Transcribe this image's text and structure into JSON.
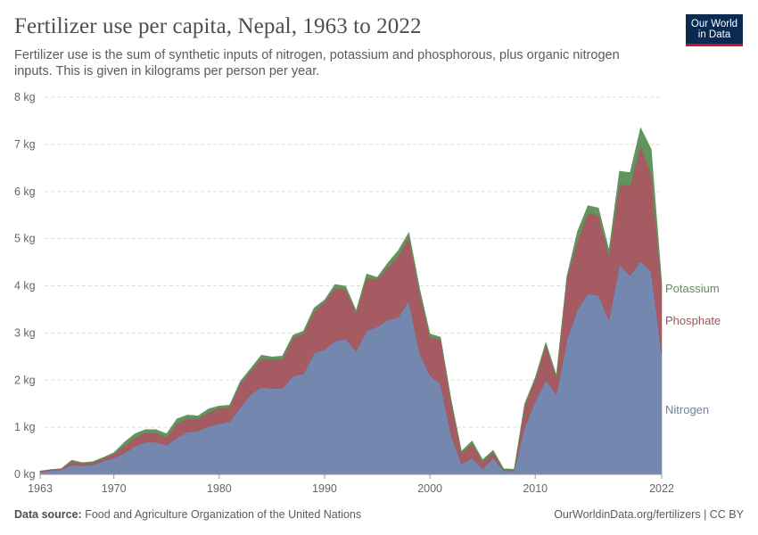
{
  "title": "Fertilizer use per capita, Nepal, 1963 to 2022",
  "subtitle": "Fertilizer use is the sum of synthetic inputs of nitrogen, potassium and phosphorous, plus organic nitrogen inputs. This is given in kilograms per person per year.",
  "logo": {
    "line1": "Our World",
    "line2": "in Data"
  },
  "footer": {
    "source_label": "Data source:",
    "source_text": "Food and Agriculture Organization of the United Nations",
    "right_text": "OurWorldinData.org/fertilizers | CC BY"
  },
  "chart_data": {
    "type": "area",
    "stacked": true,
    "x": [
      1963,
      1964,
      1965,
      1966,
      1967,
      1968,
      1969,
      1970,
      1971,
      1972,
      1973,
      1974,
      1975,
      1976,
      1977,
      1978,
      1979,
      1980,
      1981,
      1982,
      1983,
      1984,
      1985,
      1986,
      1987,
      1988,
      1989,
      1990,
      1991,
      1992,
      1993,
      1994,
      1995,
      1996,
      1997,
      1998,
      1999,
      2000,
      2001,
      2002,
      2003,
      2004,
      2005,
      2006,
      2007,
      2008,
      2009,
      2010,
      2011,
      2012,
      2013,
      2014,
      2015,
      2016,
      2017,
      2018,
      2019,
      2020,
      2021,
      2022
    ],
    "series": [
      {
        "name": "Nitrogen",
        "color": "#6d82ab",
        "values": [
          0.05,
          0.08,
          0.1,
          0.2,
          0.18,
          0.2,
          0.28,
          0.35,
          0.45,
          0.6,
          0.68,
          0.68,
          0.62,
          0.78,
          0.9,
          0.92,
          1.02,
          1.07,
          1.12,
          1.42,
          1.7,
          1.85,
          1.82,
          1.83,
          2.08,
          2.13,
          2.57,
          2.65,
          2.83,
          2.87,
          2.62,
          3.05,
          3.13,
          3.28,
          3.33,
          3.68,
          2.58,
          2.1,
          1.92,
          0.85,
          0.22,
          0.35,
          0.12,
          0.35,
          0.08,
          0.07,
          1.0,
          1.55,
          2.0,
          1.7,
          2.85,
          3.5,
          3.83,
          3.8,
          3.28,
          4.45,
          4.22,
          4.52,
          4.3,
          2.55
        ]
      },
      {
        "name": "Phosphate",
        "color": "#a2525a",
        "values": [
          0.02,
          0.02,
          0.02,
          0.08,
          0.05,
          0.05,
          0.06,
          0.08,
          0.15,
          0.18,
          0.2,
          0.2,
          0.17,
          0.3,
          0.28,
          0.25,
          0.3,
          0.33,
          0.3,
          0.5,
          0.5,
          0.6,
          0.62,
          0.6,
          0.82,
          0.85,
          0.88,
          1.0,
          1.12,
          1.05,
          0.8,
          1.1,
          1.0,
          1.1,
          1.3,
          1.35,
          1.3,
          0.8,
          0.95,
          0.7,
          0.22,
          0.3,
          0.15,
          0.12,
          0.02,
          0.02,
          0.45,
          0.45,
          0.75,
          0.35,
          1.3,
          1.45,
          1.7,
          1.7,
          1.35,
          1.7,
          1.9,
          2.45,
          2.05,
          1.4
        ]
      },
      {
        "name": "Potassium",
        "color": "#5c8f56",
        "values": [
          0.0,
          0.0,
          0.0,
          0.02,
          0.02,
          0.02,
          0.02,
          0.03,
          0.08,
          0.08,
          0.07,
          0.07,
          0.07,
          0.1,
          0.08,
          0.07,
          0.07,
          0.05,
          0.05,
          0.05,
          0.05,
          0.08,
          0.05,
          0.08,
          0.05,
          0.06,
          0.08,
          0.05,
          0.08,
          0.07,
          0.05,
          0.1,
          0.05,
          0.1,
          0.12,
          0.1,
          0.08,
          0.08,
          0.04,
          0.05,
          0.05,
          0.06,
          0.04,
          0.04,
          0.02,
          0.02,
          0.05,
          0.05,
          0.05,
          0.05,
          0.05,
          0.2,
          0.17,
          0.15,
          0.12,
          0.28,
          0.28,
          0.38,
          0.55,
          0.12
        ]
      }
    ],
    "y_unit": "kg",
    "ylim": [
      0,
      8
    ],
    "y_ticks": [
      "0 kg",
      "1 kg",
      "2 kg",
      "3 kg",
      "4 kg",
      "5 kg",
      "6 kg",
      "7 kg",
      "8 kg"
    ],
    "x_ticks": [
      "1963",
      "1970",
      "1980",
      "1990",
      "2000",
      "2010",
      "2022"
    ],
    "grid": true,
    "legend": "right, inline labels"
  }
}
